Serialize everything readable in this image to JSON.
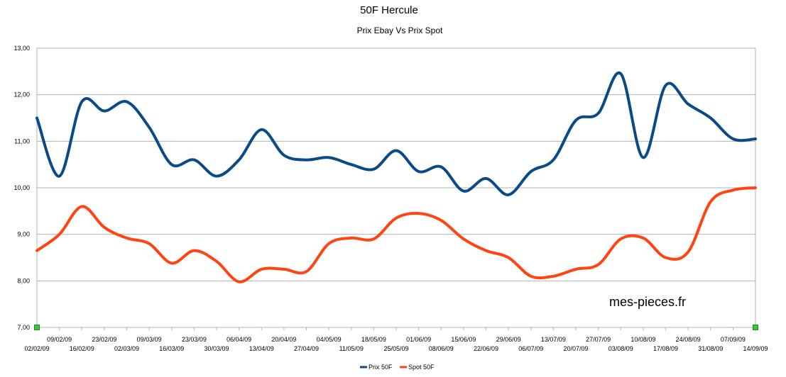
{
  "chart_data": {
    "type": "line",
    "title": "50F Hercule",
    "subtitle": "Prix Ebay Vs Prix Spot",
    "xlabel": "",
    "ylabel": "",
    "ylim": [
      7,
      13
    ],
    "yticks": [
      "7,00",
      "8,00",
      "9,00",
      "10,00",
      "11,00",
      "12,00",
      "13,00"
    ],
    "grid": true,
    "legend_position": "bottom",
    "watermark": "mes-pieces.fr",
    "categories": [
      "02/02/09",
      "09/02/09",
      "16/02/09",
      "23/02/09",
      "02/03/09",
      "09/03/09",
      "16/03/09",
      "23/03/09",
      "30/03/09",
      "06/04/09",
      "13/04/09",
      "20/04/09",
      "27/04/09",
      "04/05/09",
      "11/05/09",
      "18/05/09",
      "25/05/09",
      "01/06/09",
      "08/06/09",
      "15/06/09",
      "22/06/09",
      "29/06/09",
      "06/07/09",
      "13/07/09",
      "20/07/09",
      "27/07/09",
      "03/08/09",
      "10/08/09",
      "17/08/09",
      "24/08/09",
      "31/08/09",
      "07/09/09",
      "14/09/09"
    ],
    "series": [
      {
        "name": "Prix 50F",
        "color": "#0a4a86",
        "values": [
          11.5,
          10.25,
          11.85,
          11.65,
          11.85,
          11.3,
          10.5,
          10.6,
          10.25,
          10.6,
          11.25,
          10.7,
          10.6,
          10.65,
          10.5,
          10.4,
          10.8,
          10.35,
          10.45,
          9.93,
          10.2,
          9.85,
          10.35,
          10.6,
          11.45,
          11.6,
          12.45,
          10.65,
          12.2,
          11.8,
          11.5,
          11.05,
          11.05
        ],
        "drop_last": true
      },
      {
        "name": "Spot 50F",
        "color": "#ff4411",
        "values": [
          8.65,
          9.0,
          9.6,
          9.15,
          8.92,
          8.8,
          8.38,
          8.65,
          8.42,
          7.98,
          8.25,
          8.25,
          8.2,
          8.8,
          8.92,
          8.9,
          9.35,
          9.45,
          9.3,
          8.9,
          8.65,
          8.5,
          8.1,
          8.1,
          8.25,
          8.35,
          8.9,
          8.92,
          8.5,
          8.62,
          9.7,
          9.95,
          10.0
        ]
      }
    ]
  }
}
